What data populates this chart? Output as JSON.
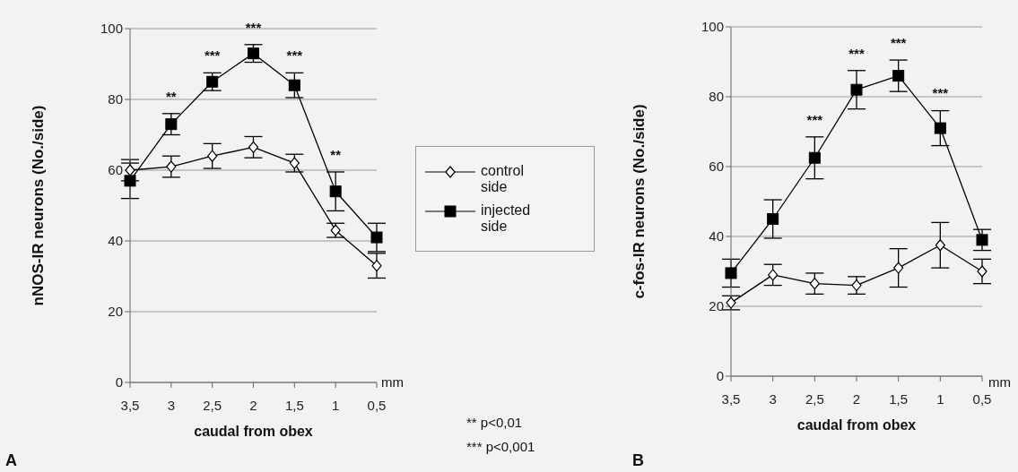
{
  "chart_data": [
    {
      "type": "line",
      "xlabel": "caudal from obex",
      "ylabel": "nNOS-IR neurons (No./side)",
      "categories": [
        "3,5",
        "3",
        "2,5",
        "2",
        "1,5",
        "1",
        "0,5"
      ],
      "series": [
        {
          "name": "control side",
          "color": "#000000",
          "marker": "diamond",
          "values": [
            60,
            61,
            64,
            66.5,
            62,
            43,
            33
          ],
          "errors": [
            3,
            3,
            3.5,
            3,
            2.5,
            2,
            3.5
          ]
        },
        {
          "name": "injected side",
          "color": "#000000",
          "marker": "square",
          "values": [
            57,
            73,
            85,
            93,
            84,
            54,
            41
          ],
          "errors": [
            5,
            3,
            2.5,
            2.5,
            3.5,
            5.5,
            4
          ]
        }
      ],
      "ylim": [
        0,
        100
      ],
      "yticks": [
        0,
        20,
        40,
        60,
        80,
        100
      ],
      "grid": "y",
      "legend": "right",
      "annotations": [
        {
          "text": "**",
          "x": "3",
          "y": 73
        },
        {
          "text": "***",
          "x": "2,5",
          "y": 85
        },
        {
          "text": "***",
          "x": "2",
          "y": 93
        },
        {
          "text": "***",
          "x": "1,5",
          "y": 84
        },
        {
          "text": "**",
          "x": "1",
          "y": 54
        },
        "mm",
        "A",
        "** p<0,01",
        "*** p<0,001"
      ]
    },
    {
      "type": "line",
      "xlabel": "caudal from obex",
      "ylabel": "c-fos-IR neurons (No./side)",
      "categories": [
        "3,5",
        "3",
        "2,5",
        "2",
        "1,5",
        "1",
        "0,5"
      ],
      "series": [
        {
          "color": "#000000",
          "marker": "diamond",
          "values": [
            21,
            29,
            26.5,
            26,
            31,
            37.5,
            30
          ],
          "errors": [
            2,
            3,
            3,
            2.5,
            5.5,
            6.5,
            3.5
          ]
        },
        {
          "color": "#000000",
          "marker": "square",
          "values": [
            29.5,
            45,
            62.5,
            82,
            86,
            71,
            39
          ],
          "errors": [
            4,
            5.5,
            6,
            5.5,
            4.5,
            5,
            3
          ]
        }
      ],
      "ylim": [
        0,
        100
      ],
      "yticks": [
        0,
        20,
        40,
        60,
        80,
        100
      ],
      "grid": "y",
      "annotations": [
        {
          "text": "***",
          "x": "2,5",
          "y": 62.5
        },
        {
          "text": "***",
          "x": "2",
          "y": 82
        },
        {
          "text": "***",
          "x": "1,5",
          "y": 86
        },
        {
          "text": "***",
          "x": "1",
          "y": 71
        },
        "mm",
        "B"
      ]
    }
  ]
}
